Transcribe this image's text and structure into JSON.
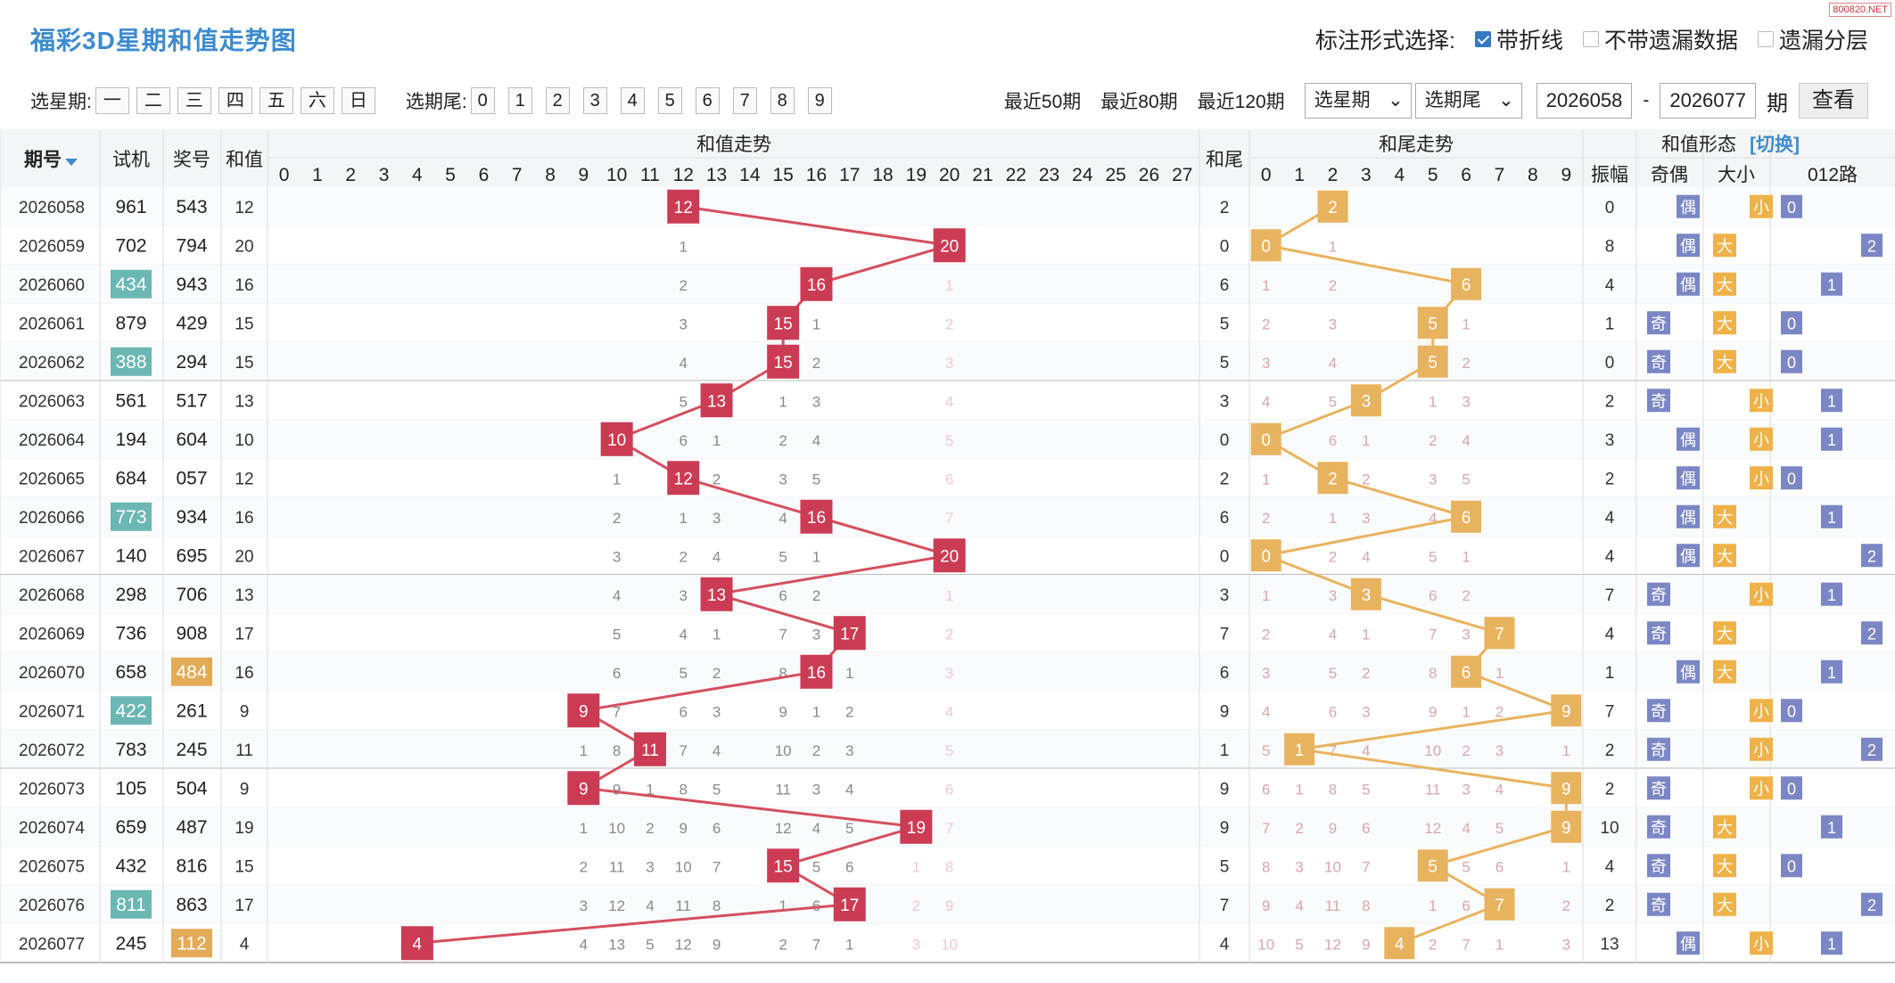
{
  "header": {
    "title": "福彩3D星期和值走势图",
    "watermark": "800820.NET",
    "mode_label": "标注形式选择:",
    "opt_line": "带折线",
    "opt_nomiss": "不带遗漏数据",
    "opt_layer": "遗漏分层"
  },
  "filters": {
    "week_label": "选星期:",
    "weekdays": [
      "一",
      "二",
      "三",
      "四",
      "五",
      "六",
      "日"
    ],
    "tail_label": "选期尾:",
    "tails": [
      "0",
      "1",
      "2",
      "3",
      "4",
      "5",
      "6",
      "7",
      "8",
      "9"
    ],
    "recent": [
      "最近50期",
      "最近80期",
      "最近120期"
    ],
    "sel_week": "选星期",
    "sel_tail": "选期尾",
    "from": "2026058",
    "to": "2026077",
    "period_unit": "期",
    "query": "查看"
  },
  "columns": {
    "issue": "期号",
    "test": "试机",
    "win": "奖号",
    "sum": "和值",
    "sum_trend": "和值走势",
    "sum_tail": "和尾",
    "tail_trend": "和尾走势",
    "shape": "和值形态",
    "switch": "[切换]",
    "amp": "振幅",
    "oe": "奇偶",
    "bs": "大小",
    "r012": "012路",
    "odd": "奇",
    "even": "偶",
    "big": "大",
    "small": "小"
  },
  "rows": [
    [
      "2026058",
      "961",
      "543",
      12
    ],
    [
      "2026059",
      "702",
      "794",
      20
    ],
    [
      "2026060",
      "434",
      "943",
      16
    ],
    [
      "2026061",
      "879",
      "429",
      15
    ],
    [
      "2026062",
      "388",
      "294",
      15
    ],
    [
      "2026063",
      "561",
      "517",
      13
    ],
    [
      "2026064",
      "194",
      "604",
      10
    ],
    [
      "2026065",
      "684",
      "057",
      12
    ],
    [
      "2026066",
      "773",
      "934",
      16
    ],
    [
      "2026067",
      "140",
      "695",
      20
    ],
    [
      "2026068",
      "298",
      "706",
      13
    ],
    [
      "2026069",
      "736",
      "908",
      17
    ],
    [
      "2026070",
      "658",
      "484",
      16
    ],
    [
      "2026071",
      "422",
      "261",
      9
    ],
    [
      "2026072",
      "783",
      "245",
      11
    ],
    [
      "2026073",
      "105",
      "504",
      9
    ],
    [
      "2026074",
      "659",
      "487",
      19
    ],
    [
      "2026075",
      "432",
      "816",
      15
    ],
    [
      "2026076",
      "811",
      "863",
      17
    ],
    [
      "2026077",
      "245",
      "112",
      4
    ]
  ],
  "colors": {
    "sum_ball": "#cc3b54",
    "tail_ball": "#e8b35f",
    "test_hl": "#6bb7b3",
    "win_hl": "#e3ab55",
    "blue": "#3d8bcf"
  }
}
